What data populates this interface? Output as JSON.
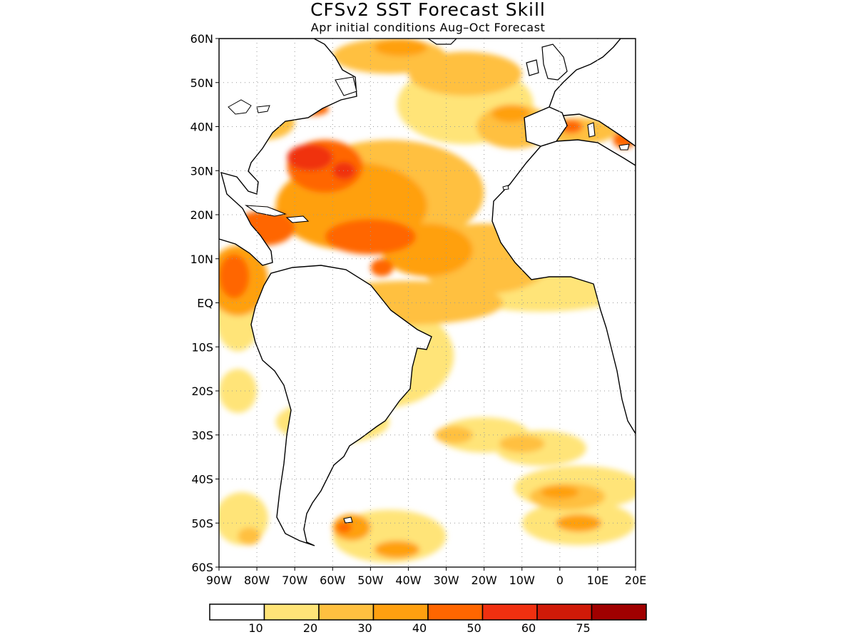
{
  "title": "CFSv2 SST Forecast Skill",
  "subtitle": "Apr initial conditions  Aug–Oct Forecast",
  "colors": {
    "land": "#ffffff",
    "coast": "#000000",
    "grid": "#9a9a9a"
  },
  "chart_data": {
    "type": "heatmap",
    "title": "CFSv2 SST Forecast Skill",
    "subtitle": "Apr initial conditions  Aug–Oct Forecast",
    "lon_range": [
      -90,
      20
    ],
    "lat_range": [
      -60,
      60
    ],
    "grid": true,
    "x_ticks": [
      {
        "value": -90,
        "label": "90W"
      },
      {
        "value": -80,
        "label": "80W"
      },
      {
        "value": -70,
        "label": "70W"
      },
      {
        "value": -60,
        "label": "60W"
      },
      {
        "value": -50,
        "label": "50W"
      },
      {
        "value": -40,
        "label": "40W"
      },
      {
        "value": -30,
        "label": "30W"
      },
      {
        "value": -20,
        "label": "20W"
      },
      {
        "value": -10,
        "label": "10W"
      },
      {
        "value": 0,
        "label": "0"
      },
      {
        "value": 10,
        "label": "10E"
      },
      {
        "value": 20,
        "label": "20E"
      }
    ],
    "y_ticks": [
      {
        "value": 60,
        "label": "60N"
      },
      {
        "value": 50,
        "label": "50N"
      },
      {
        "value": 40,
        "label": "40N"
      },
      {
        "value": 30,
        "label": "30N"
      },
      {
        "value": 20,
        "label": "20N"
      },
      {
        "value": 10,
        "label": "10N"
      },
      {
        "value": 0,
        "label": "EQ"
      },
      {
        "value": -10,
        "label": "10S"
      },
      {
        "value": -20,
        "label": "20S"
      },
      {
        "value": -30,
        "label": "30S"
      },
      {
        "value": -40,
        "label": "40S"
      },
      {
        "value": -50,
        "label": "50S"
      },
      {
        "value": -60,
        "label": "60S"
      }
    ],
    "colorbar": {
      "colors": [
        "#ffffff",
        "#ffe478",
        "#ffc040",
        "#ffa010",
        "#ff6600",
        "#f03010",
        "#d01a08",
        "#a00000"
      ],
      "labels": [
        "10",
        "20",
        "30",
        "40",
        "50",
        "60",
        "75"
      ]
    },
    "regions": [
      {
        "level": 1,
        "lon": -48,
        "lat": -12,
        "rx": 20,
        "ry": 12
      },
      {
        "level": 1,
        "lon": -60,
        "lat": -27,
        "rx": 15,
        "ry": 5
      },
      {
        "level": 1,
        "lon": -5,
        "lat": 5,
        "rx": 28,
        "ry": 7
      },
      {
        "level": 1,
        "lon": -25,
        "lat": 45,
        "rx": 18,
        "ry": 9
      },
      {
        "level": 2,
        "lon": -40,
        "lat": 0,
        "rx": 25,
        "ry": 5
      },
      {
        "level": 2,
        "lon": -25,
        "lat": 52,
        "rx": 15,
        "ry": 5
      },
      {
        "level": 1,
        "lon": -20,
        "lat": -30,
        "rx": 12,
        "ry": 4
      },
      {
        "level": 1,
        "lon": -5,
        "lat": -33,
        "rx": 12,
        "ry": 4
      },
      {
        "level": 2,
        "lon": -28,
        "lat": -30,
        "rx": 5,
        "ry": 2
      },
      {
        "level": 2,
        "lon": -10,
        "lat": -32,
        "rx": 6,
        "ry": 2
      },
      {
        "level": 1,
        "lon": 5,
        "lat": -42,
        "rx": 17,
        "ry": 5
      },
      {
        "level": 2,
        "lon": 2,
        "lat": -44,
        "rx": 10,
        "ry": 3
      },
      {
        "level": 3,
        "lon": 0,
        "lat": -43,
        "rx": 5,
        "ry": 1.5
      },
      {
        "level": 1,
        "lon": 5,
        "lat": -50,
        "rx": 15,
        "ry": 5
      },
      {
        "level": 3,
        "lon": 5,
        "lat": -50,
        "rx": 6,
        "ry": 2
      },
      {
        "level": 1,
        "lon": -45,
        "lat": -53,
        "rx": 15,
        "ry": 6
      },
      {
        "level": 3,
        "lon": -55,
        "lat": -51,
        "rx": 5,
        "ry": 3
      },
      {
        "level": 3,
        "lon": -43,
        "lat": -56,
        "rx": 6,
        "ry": 2
      },
      {
        "level": 4,
        "lon": -57,
        "lat": -51,
        "rx": 2,
        "ry": 1.2
      },
      {
        "level": 1,
        "lon": -84,
        "lat": -49,
        "rx": 7,
        "ry": 6
      },
      {
        "level": 2,
        "lon": -82,
        "lat": -53,
        "rx": 3,
        "ry": 2
      },
      {
        "level": 1,
        "lon": -85,
        "lat": -20,
        "rx": 5,
        "ry": 5
      },
      {
        "level": 1,
        "lon": -85,
        "lat": -3,
        "rx": 6,
        "ry": 8
      },
      {
        "level": 3,
        "lon": -85,
        "lat": 5,
        "rx": 8,
        "ry": 8
      },
      {
        "level": 4,
        "lon": -86,
        "lat": 6,
        "rx": 4,
        "ry": 5
      },
      {
        "level": 2,
        "lon": -45,
        "lat": 25,
        "rx": 25,
        "ry": 12
      },
      {
        "level": 3,
        "lon": -55,
        "lat": 22,
        "rx": 20,
        "ry": 10
      },
      {
        "level": 4,
        "lon": -50,
        "lat": 15,
        "rx": 12,
        "ry": 4
      },
      {
        "level": 4,
        "lon": -62,
        "lat": 31,
        "rx": 10,
        "ry": 6
      },
      {
        "level": 4,
        "lon": -78,
        "lat": 17,
        "rx": 8,
        "ry": 4
      },
      {
        "level": 5,
        "lon": -66,
        "lat": 33,
        "rx": 6,
        "ry": 3
      },
      {
        "level": 5,
        "lon": -57,
        "lat": 30,
        "rx": 3,
        "ry": 2
      },
      {
        "level": 2,
        "lon": -20,
        "lat": 10,
        "rx": 18,
        "ry": 8
      },
      {
        "level": 3,
        "lon": -35,
        "lat": 12,
        "rx": 12,
        "ry": 6
      },
      {
        "level": 4,
        "lon": -47,
        "lat": 8,
        "rx": 3,
        "ry": 2
      },
      {
        "level": 2,
        "lon": -45,
        "lat": 56,
        "rx": 15,
        "ry": 4
      },
      {
        "level": 3,
        "lon": -42,
        "lat": 58,
        "rx": 7,
        "ry": 2
      },
      {
        "level": 2,
        "lon": -12,
        "lat": 40,
        "rx": 10,
        "ry": 5
      },
      {
        "level": 3,
        "lon": -13,
        "lat": 43,
        "rx": 5,
        "ry": 2
      },
      {
        "level": 2,
        "lon": 5,
        "lat": 39,
        "rx": 10,
        "ry": 3
      },
      {
        "level": 4,
        "lon": 3,
        "lat": 40,
        "rx": 3,
        "ry": 1.5
      },
      {
        "level": 4,
        "lon": 17,
        "lat": 37,
        "rx": 3,
        "ry": 2
      },
      {
        "level": 2,
        "lon": -78,
        "lat": 41,
        "rx": 8,
        "ry": 4
      },
      {
        "level": 4,
        "lon": -65,
        "lat": 44,
        "rx": 4,
        "ry": 1.5
      },
      {
        "level": 2,
        "lon": -82,
        "lat": 58,
        "rx": 8,
        "ry": 3
      },
      {
        "level": 4,
        "lon": -80,
        "lat": 53,
        "rx": 2,
        "ry": 2
      }
    ]
  },
  "tab_lists": [
    "chart_data.x_ticks",
    "chart_data.y_ticks"
  ]
}
